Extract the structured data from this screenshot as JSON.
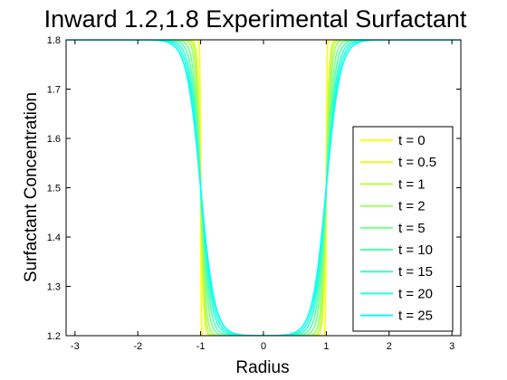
{
  "chart_data": {
    "type": "line",
    "title": "Inward 1.2,1.8 Experimental Surfactant",
    "xlabel": "Radius",
    "ylabel": "Surfactant Concentration",
    "xlim": [
      -3.14159,
      3.14159
    ],
    "ylim": [
      1.2,
      1.8
    ],
    "xticks": [
      -3,
      -2,
      -1,
      0,
      1,
      2,
      3
    ],
    "xtick_labels": [
      "-3",
      "-2",
      "-1",
      "0",
      "1",
      "2",
      "3"
    ],
    "yticks": [
      1.2,
      1.3,
      1.4,
      1.5,
      1.6,
      1.7,
      1.8
    ],
    "ytick_labels": [
      "1.2",
      "1.3",
      "1.4",
      "1.5",
      "1.6",
      "1.7",
      "1.8"
    ],
    "grid": false,
    "legend_position": "bottom-right",
    "profile": {
      "low": 1.2,
      "high": 1.8,
      "center": 1.0
    },
    "series": [
      {
        "name": "t = 0",
        "t": 0,
        "color": "#FFFF00",
        "width": 0.01
      },
      {
        "name": "t = 0.5",
        "t": 0.5,
        "color": "#DDFF22",
        "width": 0.045
      },
      {
        "name": "t = 1",
        "t": 1,
        "color": "#BBFF44",
        "width": 0.06
      },
      {
        "name": "t = 2",
        "t": 2,
        "color": "#99FF66",
        "width": 0.08
      },
      {
        "name": "t = 5",
        "t": 5,
        "color": "#77FF88",
        "width": 0.11
      },
      {
        "name": "t = 10",
        "t": 10,
        "color": "#55FFAA",
        "width": 0.14
      },
      {
        "name": "t = 15",
        "t": 15,
        "color": "#33FFCC",
        "width": 0.17
      },
      {
        "name": "t = 20",
        "t": 20,
        "color": "#22FFDD",
        "width": 0.195
      },
      {
        "name": "t = 25",
        "t": 25,
        "color": "#00FFFF",
        "width": 0.22
      }
    ]
  }
}
